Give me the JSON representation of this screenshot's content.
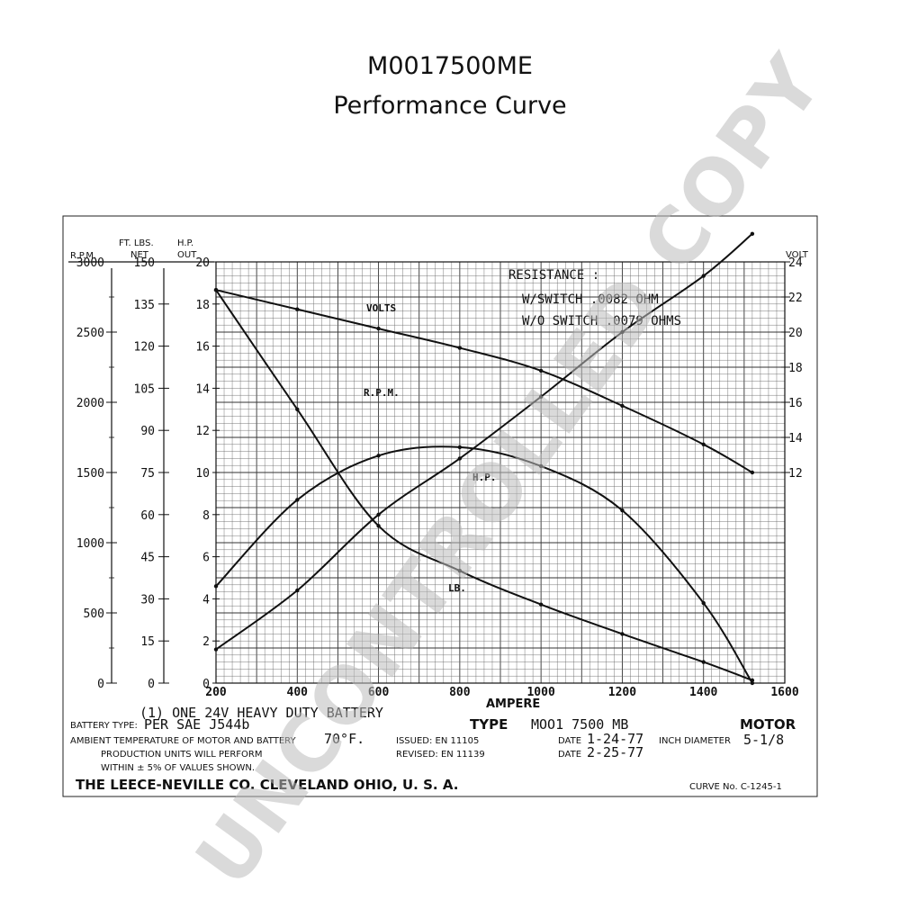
{
  "page": {
    "title": "M0017500ME",
    "subtitle": "Performance Curve"
  },
  "chart_data": {
    "type": "line",
    "x": [
      200,
      400,
      600,
      800,
      1000,
      1200,
      1400,
      1520
    ],
    "xlabel": "AMPERE",
    "xlim": [
      200,
      1600
    ],
    "x_ticks": [
      "200",
      "400",
      "600",
      "800",
      "1000",
      "1200",
      "1400",
      "1600"
    ],
    "axes": {
      "rpm": {
        "header": "R.P.M.",
        "ylim": [
          0,
          3000
        ],
        "ticks": [
          "0",
          "500",
          "1000",
          "1500",
          "2000",
          "2500",
          "3000"
        ]
      },
      "torque": {
        "header_1": "FT. LBS.",
        "header_2": "NET",
        "ylim": [
          0,
          150
        ],
        "ticks": [
          "0",
          "15",
          "30",
          "45",
          "60",
          "75",
          "90",
          "105",
          "120",
          "135",
          "150"
        ]
      },
      "hp": {
        "header_1": "H.P.",
        "header_2": "OUT",
        "ylim": [
          0,
          20
        ],
        "ticks": [
          "0",
          "2",
          "4",
          "6",
          "8",
          "10",
          "12",
          "14",
          "16",
          "18",
          "20"
        ]
      },
      "volt": {
        "header": "VOLT",
        "ylim": [
          0,
          24
        ],
        "ticks": [
          "12",
          "14",
          "16",
          "18",
          "20",
          "22",
          "24"
        ]
      }
    },
    "series": [
      {
        "name": "VOLTS",
        "axis": "volt",
        "values": [
          22.4,
          21.3,
          20.2,
          19.1,
          17.8,
          15.8,
          13.6,
          12.0
        ]
      },
      {
        "name": "R.P.M.",
        "axis": "rpm",
        "values": [
          2800,
          1950,
          1120,
          800,
          560,
          350,
          150,
          20
        ]
      },
      {
        "name": "H.P.",
        "axis": "hp",
        "values": [
          4.6,
          8.7,
          10.8,
          11.2,
          10.3,
          8.2,
          3.8,
          0
        ]
      },
      {
        "name": "LB.",
        "axis": "torque",
        "values": [
          12,
          33,
          60,
          80,
          102,
          125,
          145,
          160
        ]
      }
    ],
    "grid": true,
    "annotations": {
      "resistance_title": "RESISTANCE :",
      "with_switch": "W/SWITCH  .0082 OHM",
      "without_switch": "W/O SWITCH  .0079 OHMS"
    }
  },
  "footer": {
    "battery_note": "(1) ONE 24V HEAVY DUTY BATTERY",
    "battery_type_label": "BATTERY TYPE:",
    "battery_type_value": "PER SAE J544b",
    "ambient_text": "AMBIENT TEMPERATURE OF MOTOR AND BATTERY",
    "ambient_value": "70°F.",
    "production_line1": "PRODUCTION UNITS WILL PERFORM",
    "production_line2": "WITHIN ± 5% OF VALUES SHOWN.",
    "issued": "ISSUED: EN 11105",
    "revised": "REVISED: EN 11139",
    "type_label": "TYPE",
    "type_value": "MOO1 7500 MB",
    "motor_label": "MOTOR",
    "date_label_1": "DATE",
    "date_value_1": "1-24-77",
    "inch_diameter_label": "INCH DIAMETER",
    "inch_diameter_value": "5-1/8",
    "date_label_2": "DATE",
    "date_value_2": "2-25-77",
    "company": "THE LEECE-NEVILLE CO. CLEVELAND OHIO, U. S. A.",
    "curve_no": "CURVE No. C-1245-1"
  },
  "stamp": {
    "text": "UNCONTROLLED COPY"
  }
}
